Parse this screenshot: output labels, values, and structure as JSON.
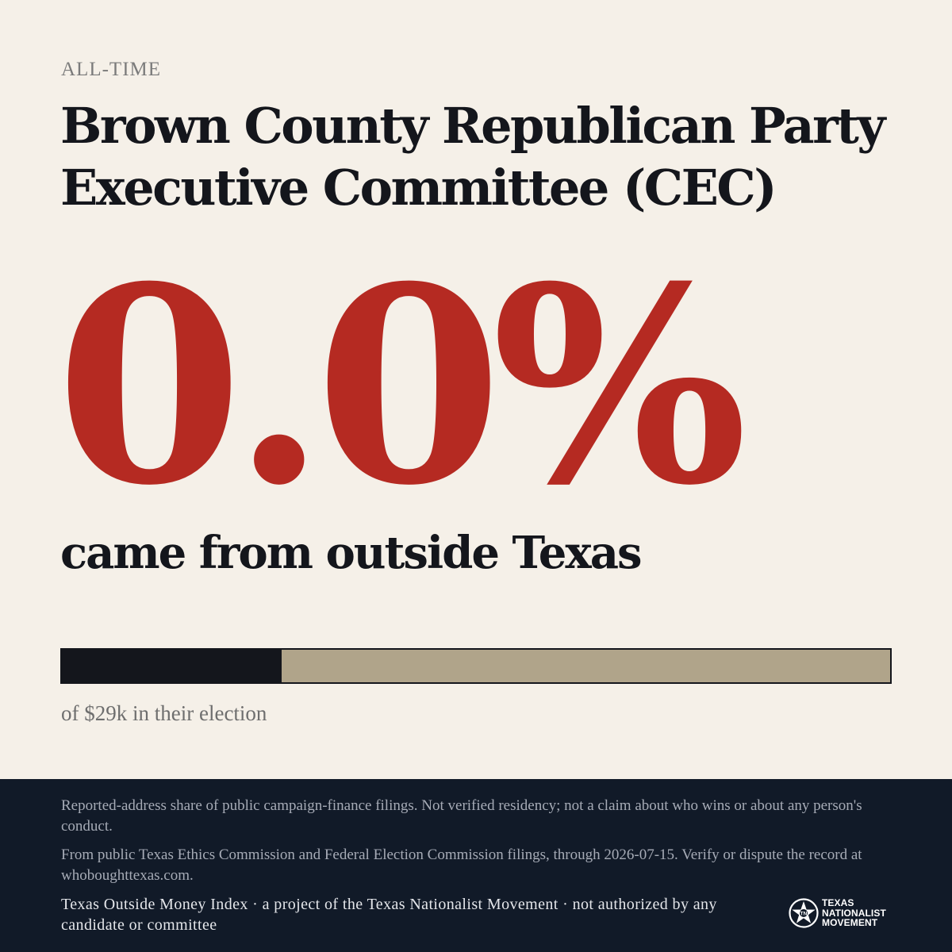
{
  "header": {
    "kicker": "ALL-TIME",
    "title": "Brown County Republican Party Executive Committee (CEC)"
  },
  "stat": {
    "value": "0.0%",
    "caption": "came from outside Texas"
  },
  "bar": {
    "fill_fraction": 0.265,
    "fill_color": "#14161c",
    "track_color": "#b0a48a",
    "caption": "of $29k in their election"
  },
  "footer": {
    "disclaimer": "Reported-address share of public campaign-finance filings. Not verified residency; not a claim about who wins or about any person's conduct.",
    "source": "From public Texas Ethics Commission and Federal Election Commission filings, through 2026-07-15. Verify or dispute the record at whoboughttexas.com.",
    "attribution": "Texas Outside Money Index · a project of the Texas Nationalist Movement · not authorized by any candidate or committee",
    "logo": {
      "icon": "lone-star-seal-icon",
      "line1": "TEXAS",
      "line2": "NATIONALIST",
      "line3": "MOVEMENT"
    }
  },
  "colors": {
    "background": "#f5f0e8",
    "accent": "#b52a22",
    "ink": "#14161c",
    "footer_bg": "#111a28"
  }
}
